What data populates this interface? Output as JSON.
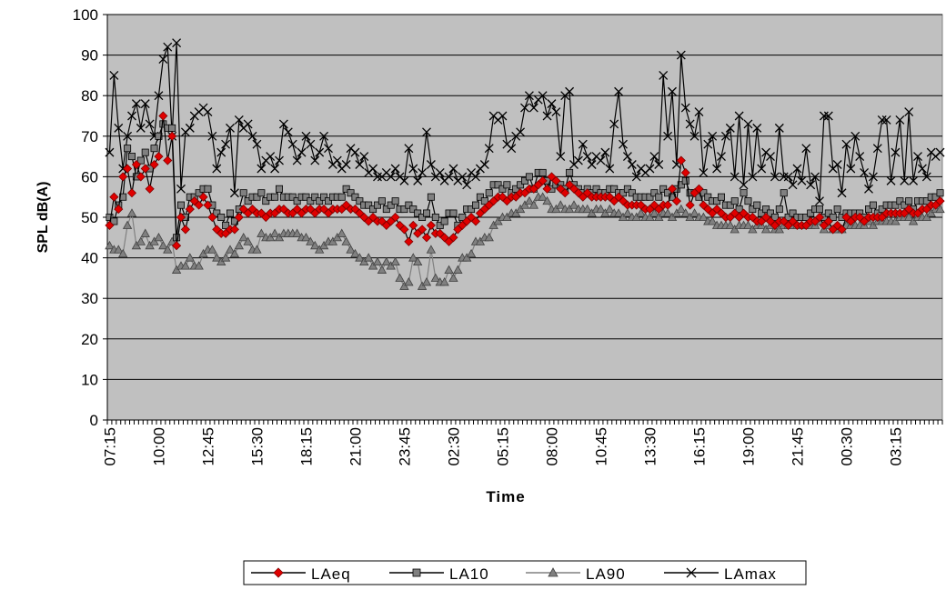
{
  "chart_data": {
    "type": "line",
    "y_label": "SPL dB(A)",
    "x_label": "Time",
    "categories": [
      "07:15",
      null,
      null,
      null,
      null,
      null,
      null,
      null,
      null,
      null,
      null,
      "10:00",
      null,
      null,
      null,
      null,
      null,
      null,
      null,
      null,
      null,
      null,
      "12:45",
      null,
      null,
      null,
      null,
      null,
      null,
      null,
      null,
      null,
      null,
      "15:30",
      null,
      null,
      null,
      null,
      null,
      null,
      null,
      null,
      null,
      null,
      "18:15",
      null,
      null,
      null,
      null,
      null,
      null,
      null,
      null,
      null,
      null,
      "21:00",
      null,
      null,
      null,
      null,
      null,
      null,
      null,
      null,
      null,
      null,
      "23:45",
      null,
      null,
      null,
      null,
      null,
      null,
      null,
      null,
      null,
      null,
      "02:30",
      null,
      null,
      null,
      null,
      null,
      null,
      null,
      null,
      null,
      null,
      "05:15",
      null,
      null,
      null,
      null,
      null,
      null,
      null,
      null,
      null,
      null,
      "08:00",
      null,
      null,
      null,
      null,
      null,
      null,
      null,
      null,
      null,
      null,
      "10:45",
      null,
      null,
      null,
      null,
      null,
      null,
      null,
      null,
      null,
      null,
      "13:30",
      null,
      null,
      null,
      null,
      null,
      null,
      null,
      null,
      null,
      null,
      "16:15",
      null,
      null,
      null,
      null,
      null,
      null,
      null,
      null,
      null,
      null,
      "19:00",
      null,
      null,
      null,
      null,
      null,
      null,
      null,
      null,
      null,
      null,
      "21:45",
      null,
      null,
      null,
      null,
      null,
      null,
      null,
      null,
      null,
      null,
      "00:30",
      null,
      null,
      null,
      null,
      null,
      null,
      null,
      null,
      null,
      null,
      "03:15",
      null,
      null,
      null,
      null,
      null,
      null,
      null,
      null,
      null,
      null
    ],
    "series": [
      {
        "name": "LAeq",
        "color": "#e00000",
        "line_color": "#000000",
        "marker": "diamond",
        "values": [
          48,
          55,
          52,
          60,
          62,
          56,
          63,
          60,
          62,
          57,
          63,
          65,
          75,
          64,
          70,
          43,
          50,
          47,
          52,
          54,
          53,
          55,
          53,
          50,
          47,
          46,
          46,
          47,
          47,
          50,
          52,
          51,
          52,
          51,
          51,
          50,
          51,
          51,
          52,
          52,
          51,
          51,
          52,
          51,
          52,
          52,
          51,
          52,
          52,
          51,
          52,
          52,
          52,
          53,
          52,
          52,
          51,
          50,
          49,
          50,
          49,
          49,
          48,
          49,
          50,
          48,
          47,
          44,
          48,
          46,
          47,
          45,
          48,
          46,
          46,
          45,
          44,
          45,
          47,
          48,
          49,
          50,
          49,
          51,
          52,
          53,
          54,
          55,
          55,
          54,
          55,
          55,
          56,
          56,
          57,
          57,
          58,
          59,
          57,
          60,
          59,
          57,
          56,
          58,
          57,
          56,
          55,
          56,
          55,
          55,
          55,
          55,
          55,
          54,
          55,
          54,
          53,
          53,
          53,
          53,
          52,
          52,
          53,
          52,
          53,
          53,
          57,
          54,
          64,
          61,
          53,
          56,
          57,
          53,
          52,
          51,
          52,
          51,
          50,
          50,
          51,
          50,
          51,
          50,
          50,
          49,
          49,
          50,
          49,
          48,
          49,
          49,
          48,
          49,
          48,
          48,
          48,
          49,
          49,
          50,
          48,
          49,
          47,
          48,
          47,
          50,
          49,
          50,
          50,
          49,
          50,
          50,
          50,
          50,
          51,
          51,
          51,
          51,
          51,
          52,
          51,
          51,
          52,
          52,
          53,
          53,
          54
        ]
      },
      {
        "name": "LA10",
        "color": "#808080",
        "line_color": "#000000",
        "marker": "square",
        "values": [
          50,
          49,
          53,
          55,
          67,
          65,
          60,
          64,
          66,
          62,
          67,
          70,
          73,
          72,
          72,
          45,
          53,
          50,
          55,
          55,
          56,
          57,
          57,
          53,
          51,
          50,
          48,
          51,
          49,
          52,
          56,
          54,
          55,
          55,
          56,
          54,
          55,
          55,
          57,
          55,
          55,
          55,
          54,
          55,
          55,
          54,
          55,
          54,
          55,
          54,
          55,
          55,
          55,
          57,
          56,
          55,
          54,
          53,
          53,
          52,
          53,
          54,
          52,
          53,
          54,
          52,
          52,
          53,
          52,
          51,
          50,
          51,
          55,
          50,
          48,
          49,
          51,
          51,
          48,
          50,
          52,
          52,
          53,
          55,
          54,
          56,
          58,
          58,
          57,
          58,
          56,
          57,
          58,
          59,
          60,
          57,
          61,
          61,
          59,
          57,
          58,
          58,
          57,
          61,
          58,
          57,
          56,
          57,
          56,
          57,
          56,
          56,
          57,
          57,
          56,
          56,
          57,
          56,
          55,
          55,
          55,
          55,
          56,
          55,
          57,
          56,
          55,
          57,
          58,
          59,
          56,
          56,
          55,
          56,
          55,
          54,
          54,
          55,
          53,
          53,
          54,
          52,
          56,
          54,
          52,
          53,
          51,
          52,
          51,
          50,
          52,
          56,
          50,
          51,
          50,
          50,
          50,
          51,
          52,
          52,
          50,
          51,
          50,
          52,
          50,
          51,
          51,
          51,
          51,
          50,
          52,
          53,
          51,
          52,
          53,
          53,
          53,
          54,
          53,
          54,
          52,
          54,
          54,
          54,
          55,
          55,
          56
        ]
      },
      {
        "name": "LA90",
        "color": "#808080",
        "line_color": "#808080",
        "marker": "triangle",
        "values": [
          43,
          42,
          42,
          41,
          48,
          51,
          43,
          44,
          46,
          43,
          44,
          45,
          43,
          42,
          44,
          37,
          38,
          38,
          40,
          38,
          38,
          41,
          42,
          42,
          40,
          39,
          40,
          42,
          41,
          43,
          45,
          44,
          42,
          42,
          46,
          45,
          45,
          46,
          45,
          46,
          46,
          46,
          46,
          45,
          45,
          44,
          43,
          42,
          43,
          44,
          44,
          45,
          46,
          44,
          42,
          41,
          40,
          39,
          40,
          38,
          39,
          37,
          39,
          38,
          39,
          35,
          33,
          34,
          40,
          39,
          33,
          34,
          42,
          35,
          34,
          34,
          37,
          35,
          37,
          40,
          40,
          41,
          44,
          44,
          45,
          45,
          48,
          49,
          50,
          50,
          51,
          51,
          52,
          53,
          54,
          53,
          55,
          55,
          54,
          52,
          52,
          53,
          52,
          52,
          53,
          52,
          52,
          52,
          51,
          52,
          52,
          51,
          52,
          51,
          51,
          50,
          51,
          50,
          50,
          51,
          50,
          50,
          51,
          50,
          51,
          51,
          50,
          51,
          52,
          51,
          50,
          51,
          50,
          50,
          49,
          49,
          48,
          48,
          48,
          48,
          47,
          48,
          48,
          48,
          47,
          48,
          48,
          47,
          48,
          47,
          47,
          48,
          48,
          48,
          48,
          48,
          48,
          48,
          48,
          49,
          47,
          48,
          47,
          47,
          47,
          48,
          48,
          48,
          48,
          48,
          49,
          48,
          49,
          49,
          49,
          49,
          49,
          50,
          50,
          50,
          49,
          50,
          50,
          50,
          51,
          52,
          52
        ]
      },
      {
        "name": "LAmax",
        "color": "#000000",
        "line_color": "#000000",
        "marker": "x",
        "values": [
          66,
          85,
          72,
          62,
          70,
          75,
          78,
          72,
          78,
          73,
          70,
          80,
          89,
          92,
          70,
          93,
          57,
          71,
          72,
          75,
          76,
          77,
          76,
          70,
          62,
          66,
          68,
          72,
          56,
          74,
          72,
          73,
          70,
          68,
          62,
          64,
          65,
          62,
          64,
          73,
          71,
          68,
          64,
          66,
          70,
          68,
          64,
          66,
          70,
          67,
          63,
          64,
          62,
          63,
          67,
          66,
          63,
          65,
          61,
          62,
          60,
          60,
          61,
          60,
          62,
          60,
          59,
          67,
          62,
          59,
          61,
          71,
          63,
          60,
          61,
          59,
          60,
          62,
          59,
          60,
          58,
          61,
          60,
          62,
          63,
          67,
          75,
          74,
          75,
          68,
          67,
          70,
          71,
          77,
          80,
          77,
          79,
          80,
          75,
          78,
          76,
          65,
          80,
          81,
          63,
          64,
          68,
          65,
          63,
          65,
          64,
          66,
          62,
          73,
          81,
          68,
          65,
          63,
          60,
          62,
          61,
          62,
          65,
          63,
          85,
          70,
          81,
          63,
          90,
          77,
          73,
          70,
          76,
          61,
          68,
          70,
          62,
          65,
          70,
          72,
          60,
          75,
          58,
          73,
          60,
          72,
          62,
          66,
          65,
          60,
          72,
          60,
          60,
          58,
          62,
          59,
          67,
          58,
          60,
          54,
          75,
          75,
          62,
          63,
          56,
          68,
          62,
          70,
          65,
          61,
          57,
          60,
          67,
          74,
          74,
          59,
          66,
          74,
          59,
          76,
          59,
          65,
          62,
          60,
          66,
          65,
          66
        ]
      }
    ],
    "ylim": [
      0,
      100
    ],
    "yticks": [
      0,
      10,
      20,
      30,
      40,
      50,
      60,
      70,
      80,
      90,
      100
    ],
    "grid": true,
    "plot_background": "#c0c0c0",
    "legend": "bottom"
  }
}
